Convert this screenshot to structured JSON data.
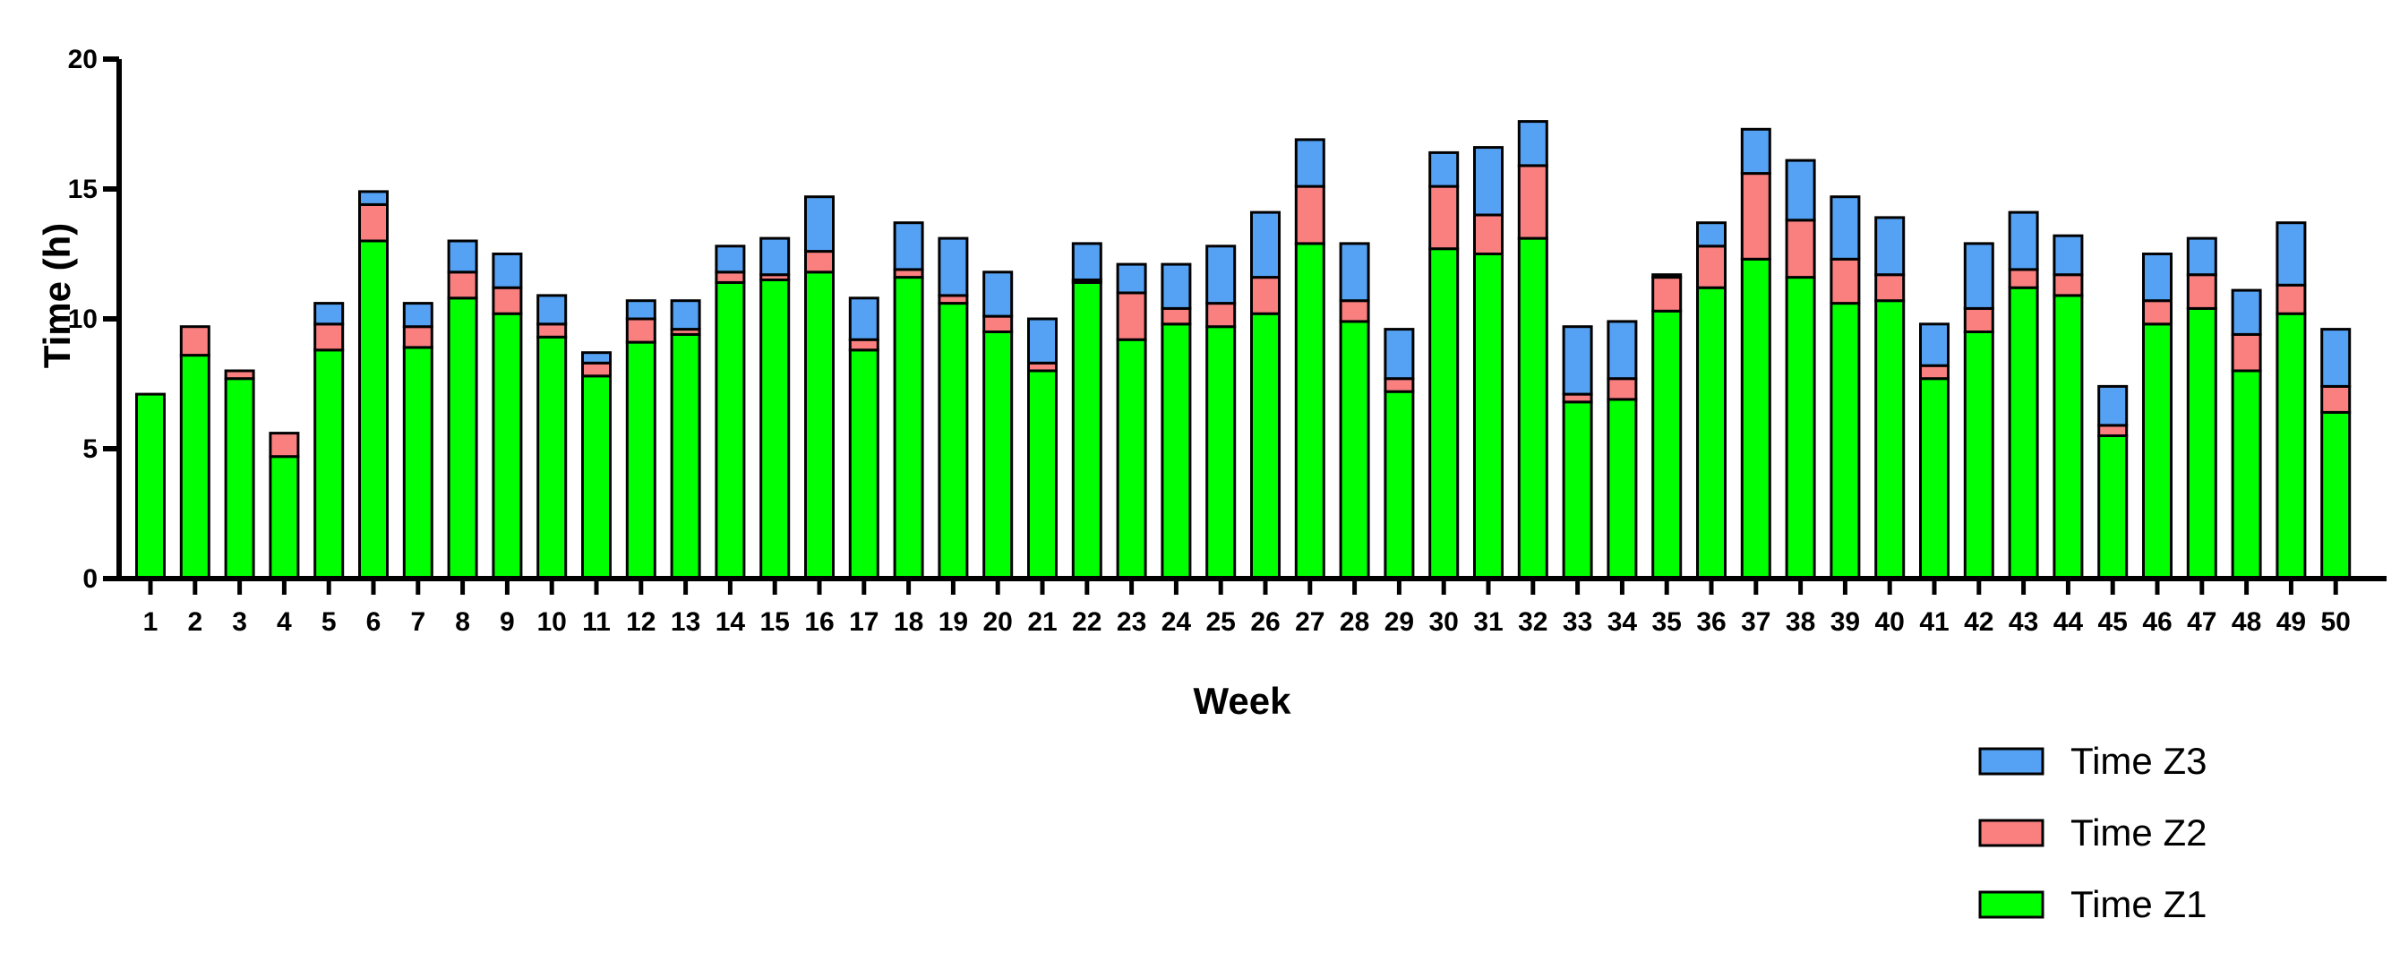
{
  "chart_data": {
    "type": "bar",
    "stacked": true,
    "xlabel": "Week",
    "ylabel": "Time (h)",
    "ylim": [
      0,
      20
    ],
    "yticks": [
      0,
      5,
      10,
      15,
      20
    ],
    "categories": [
      "1",
      "2",
      "3",
      "4",
      "5",
      "6",
      "7",
      "8",
      "9",
      "10",
      "11",
      "12",
      "13",
      "14",
      "15",
      "16",
      "17",
      "18",
      "19",
      "20",
      "21",
      "22",
      "23",
      "24",
      "25",
      "26",
      "27",
      "28",
      "29",
      "30",
      "31",
      "32",
      "33",
      "34",
      "35",
      "36",
      "37",
      "38",
      "39",
      "40",
      "41",
      "42",
      "43",
      "44",
      "45",
      "46",
      "47",
      "48",
      "49",
      "50"
    ],
    "series": [
      {
        "name": "Time Z1",
        "color": "#00ff00",
        "values": [
          7.1,
          8.6,
          7.7,
          4.7,
          8.8,
          13.0,
          8.9,
          10.8,
          10.2,
          9.3,
          7.8,
          9.1,
          9.4,
          11.4,
          11.5,
          11.8,
          8.8,
          11.6,
          10.6,
          9.5,
          8.0,
          11.4,
          9.2,
          9.8,
          9.7,
          10.2,
          12.9,
          9.9,
          7.2,
          12.7,
          12.5,
          13.1,
          6.8,
          6.9,
          10.3,
          11.2,
          12.3,
          11.6,
          10.6,
          10.7,
          7.7,
          9.5,
          11.2,
          10.9,
          5.5,
          9.8,
          10.4,
          8.0,
          10.2,
          6.4
        ]
      },
      {
        "name": "Time Z2",
        "color": "#fa8080",
        "values": [
          0,
          1.1,
          0.3,
          0.9,
          1.0,
          1.4,
          0.8,
          1.0,
          1.0,
          0.5,
          0.5,
          0.9,
          0.2,
          0.4,
          0.2,
          0.8,
          0.4,
          0.3,
          0.3,
          0.6,
          0.3,
          0.1,
          1.8,
          0.6,
          0.9,
          1.4,
          2.2,
          0.8,
          0.5,
          2.4,
          1.5,
          2.8,
          0.3,
          0.8,
          1.3,
          1.6,
          3.3,
          2.2,
          1.7,
          1.0,
          0.5,
          0.9,
          0.7,
          0.8,
          0.4,
          0.9,
          1.3,
          1.4,
          1.1,
          1.0
        ]
      },
      {
        "name": "Time Z3",
        "color": "#55a2f5",
        "values": [
          0,
          0,
          0,
          0,
          0.8,
          0.5,
          0.9,
          1.2,
          1.3,
          1.1,
          0.4,
          0.7,
          1.1,
          1.0,
          1.4,
          2.1,
          1.6,
          1.8,
          2.2,
          1.7,
          1.7,
          1.4,
          1.1,
          1.7,
          2.2,
          2.5,
          1.8,
          2.2,
          1.9,
          1.3,
          2.6,
          1.7,
          2.6,
          2.2,
          0.1,
          0.9,
          1.7,
          2.3,
          2.4,
          2.2,
          1.6,
          2.5,
          2.2,
          1.5,
          1.5,
          1.8,
          1.4,
          1.7,
          2.4,
          2.2
        ]
      }
    ],
    "legend": {
      "position": "bottom-right",
      "order": [
        "Time Z3",
        "Time Z2",
        "Time Z1"
      ]
    },
    "grid": false
  }
}
